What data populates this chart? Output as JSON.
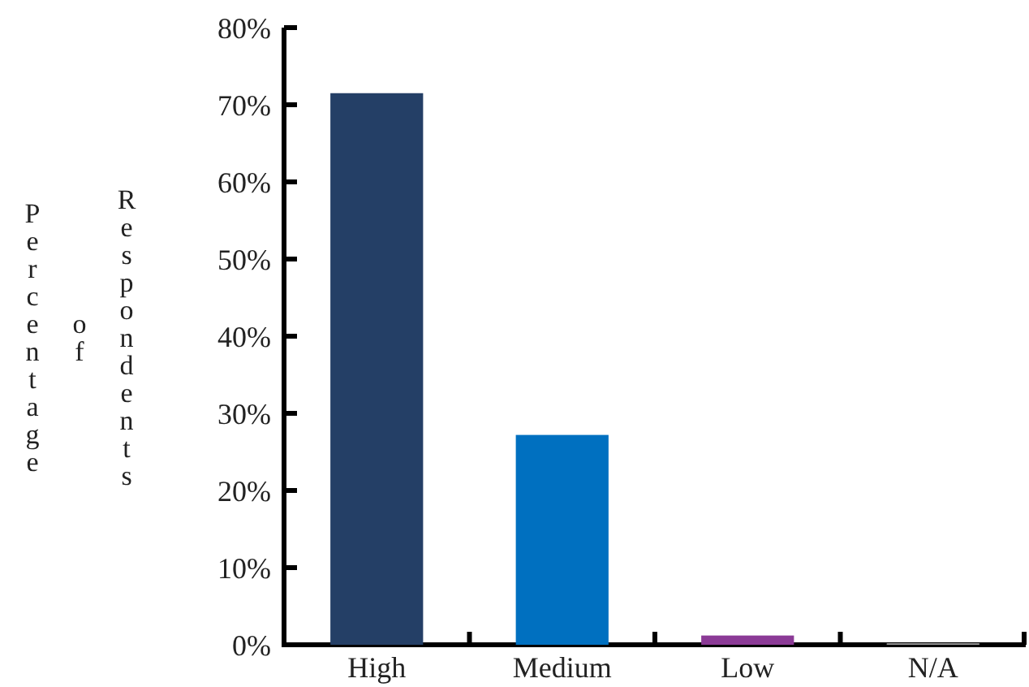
{
  "chart_data": {
    "type": "bar",
    "ylabel": "Percentage of Respondents",
    "categories": [
      "High",
      "Medium",
      "Low",
      "N/A"
    ],
    "values": [
      71.5,
      27.2,
      1.2,
      0.2
    ],
    "colors": [
      "#243f66",
      "#0070c0",
      "#8b3a96",
      "#999999"
    ],
    "ylim": [
      0,
      80
    ],
    "yticks": [
      {
        "value": 0,
        "label": "0%"
      },
      {
        "value": 10,
        "label": "10%"
      },
      {
        "value": 20,
        "label": "20%"
      },
      {
        "value": 30,
        "label": "30%"
      },
      {
        "value": 40,
        "label": "40%"
      },
      {
        "value": 50,
        "label": "50%"
      },
      {
        "value": 60,
        "label": "60%"
      },
      {
        "value": 70,
        "label": "70%"
      },
      {
        "value": 80,
        "label": "80%"
      }
    ],
    "grid": false
  }
}
